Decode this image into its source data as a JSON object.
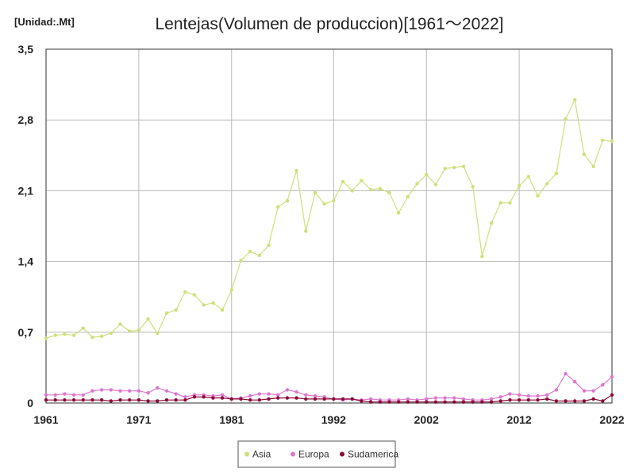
{
  "chart_data": {
    "type": "line",
    "title": "Lentejas(Volumen de produccion)[1961～2022]",
    "unit_label": "[Unidad:.Mt]",
    "x_ticks": [
      "1961",
      "1971",
      "1981",
      "1992",
      "2002",
      "2012",
      "2022"
    ],
    "y_ticks": [
      "0",
      "0,7",
      "1,4",
      "2,1",
      "2,8",
      "3,5"
    ],
    "xlim": [
      1961,
      2022
    ],
    "ylim": [
      0,
      3.5
    ],
    "grid": true,
    "legend_position": "bottom",
    "series": [
      {
        "name": "Asia",
        "color": "#cfe07a",
        "x": [
          1961,
          1962,
          1963,
          1964,
          1965,
          1966,
          1967,
          1968,
          1969,
          1970,
          1971,
          1972,
          1973,
          1974,
          1975,
          1976,
          1977,
          1978,
          1979,
          1980,
          1981,
          1982,
          1983,
          1984,
          1985,
          1986,
          1987,
          1988,
          1989,
          1990,
          1991,
          1992,
          1993,
          1994,
          1995,
          1996,
          1997,
          1998,
          1999,
          2000,
          2001,
          2002,
          2003,
          2004,
          2005,
          2006,
          2007,
          2008,
          2009,
          2010,
          2011,
          2012,
          2013,
          2014,
          2015,
          2016,
          2017,
          2018,
          2019,
          2020,
          2021,
          2022
        ],
        "values": [
          0.64,
          0.67,
          0.68,
          0.67,
          0.74,
          0.65,
          0.66,
          0.69,
          0.78,
          0.71,
          0.72,
          0.83,
          0.69,
          0.89,
          0.92,
          1.1,
          1.07,
          0.97,
          0.99,
          0.92,
          1.12,
          1.41,
          1.5,
          1.46,
          1.56,
          1.94,
          2.0,
          2.3,
          1.7,
          2.08,
          1.97,
          2.0,
          2.19,
          2.1,
          2.2,
          2.11,
          2.12,
          2.08,
          1.88,
          2.04,
          2.17,
          2.26,
          2.16,
          2.32,
          2.33,
          2.34,
          2.14,
          1.45,
          1.78,
          1.98,
          1.98,
          2.15,
          2.24,
          2.05,
          2.17,
          2.27,
          2.81,
          3.0,
          2.46,
          2.34,
          2.6,
          2.59
        ]
      },
      {
        "name": "Europa",
        "color": "#dd77cc",
        "x": [
          1961,
          1962,
          1963,
          1964,
          1965,
          1966,
          1967,
          1968,
          1969,
          1970,
          1971,
          1972,
          1973,
          1974,
          1975,
          1976,
          1977,
          1978,
          1979,
          1980,
          1981,
          1982,
          1983,
          1984,
          1985,
          1986,
          1987,
          1988,
          1989,
          1990,
          1991,
          1992,
          1993,
          1994,
          1995,
          1996,
          1997,
          1998,
          1999,
          2000,
          2001,
          2002,
          2003,
          2004,
          2005,
          2006,
          2007,
          2008,
          2009,
          2010,
          2011,
          2012,
          2013,
          2014,
          2015,
          2016,
          2017,
          2018,
          2019,
          2020,
          2021,
          2022
        ],
        "values": [
          0.08,
          0.08,
          0.09,
          0.08,
          0.08,
          0.12,
          0.13,
          0.13,
          0.12,
          0.12,
          0.12,
          0.1,
          0.15,
          0.12,
          0.09,
          0.06,
          0.08,
          0.08,
          0.07,
          0.08,
          0.04,
          0.05,
          0.07,
          0.09,
          0.09,
          0.08,
          0.13,
          0.11,
          0.08,
          0.07,
          0.06,
          0.04,
          0.03,
          0.04,
          0.03,
          0.04,
          0.03,
          0.03,
          0.03,
          0.04,
          0.03,
          0.04,
          0.05,
          0.05,
          0.05,
          0.04,
          0.03,
          0.03,
          0.04,
          0.06,
          0.09,
          0.08,
          0.07,
          0.07,
          0.08,
          0.13,
          0.29,
          0.21,
          0.12,
          0.12,
          0.18,
          0.26
        ]
      },
      {
        "name": "Sudamerica",
        "color": "#8b0a3a",
        "x": [
          1961,
          1962,
          1963,
          1964,
          1965,
          1966,
          1967,
          1968,
          1969,
          1970,
          1971,
          1972,
          1973,
          1974,
          1975,
          1976,
          1977,
          1978,
          1979,
          1980,
          1981,
          1982,
          1983,
          1984,
          1985,
          1986,
          1987,
          1988,
          1989,
          1990,
          1991,
          1992,
          1993,
          1994,
          1995,
          1996,
          1997,
          1998,
          1999,
          2000,
          2001,
          2002,
          2003,
          2004,
          2005,
          2006,
          2007,
          2008,
          2009,
          2010,
          2011,
          2012,
          2013,
          2014,
          2015,
          2016,
          2017,
          2018,
          2019,
          2020,
          2021,
          2022
        ],
        "values": [
          0.03,
          0.03,
          0.03,
          0.03,
          0.03,
          0.03,
          0.03,
          0.02,
          0.03,
          0.03,
          0.03,
          0.02,
          0.02,
          0.03,
          0.03,
          0.03,
          0.06,
          0.06,
          0.05,
          0.05,
          0.04,
          0.04,
          0.03,
          0.03,
          0.04,
          0.05,
          0.05,
          0.05,
          0.04,
          0.04,
          0.04,
          0.04,
          0.04,
          0.04,
          0.02,
          0.01,
          0.01,
          0.01,
          0.01,
          0.01,
          0.01,
          0.01,
          0.01,
          0.01,
          0.01,
          0.01,
          0.01,
          0.01,
          0.01,
          0.02,
          0.03,
          0.03,
          0.03,
          0.03,
          0.04,
          0.02,
          0.02,
          0.02,
          0.02,
          0.04,
          0.02,
          0.08
        ]
      }
    ]
  }
}
